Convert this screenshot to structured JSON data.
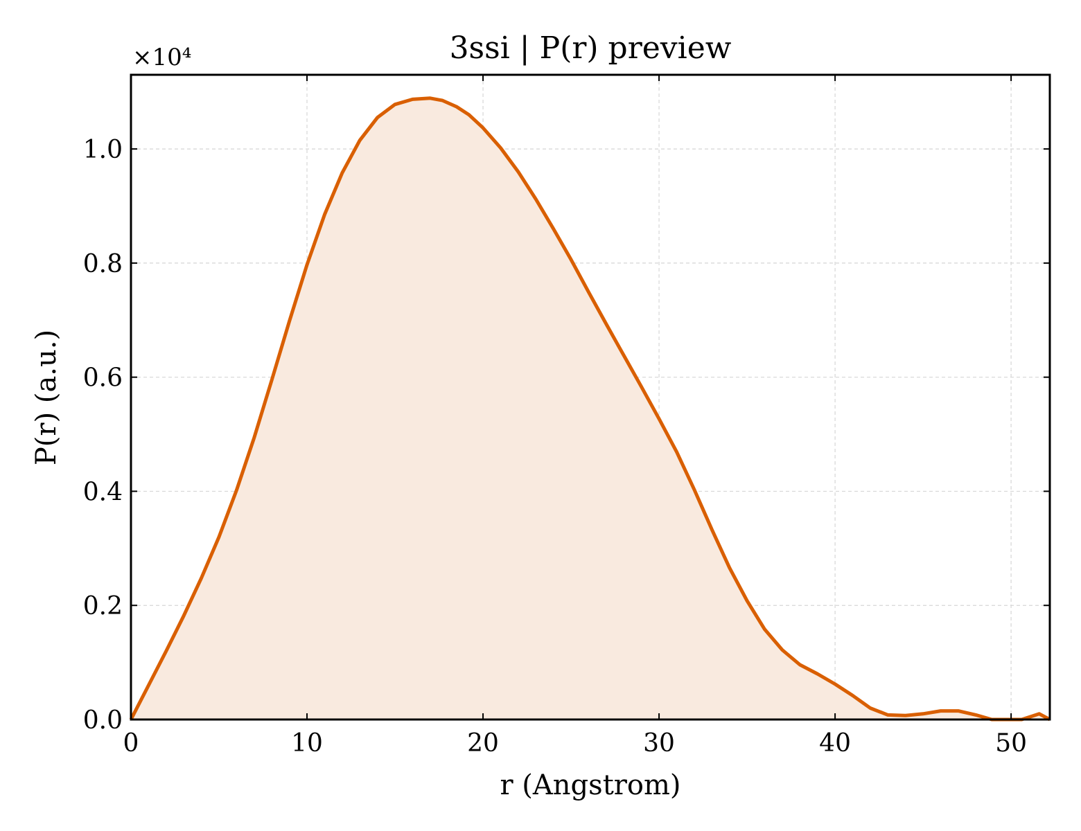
{
  "chart_data": {
    "type": "area",
    "title": "3ssi | P(r) preview",
    "xlabel": "r (Angstrom)",
    "ylabel": "P(r) (a.u.)",
    "y_offset_text": "×10⁴",
    "y_scale": 10000,
    "xlim": [
      0,
      52.2
    ],
    "ylim": [
      0,
      11300
    ],
    "xticks": [
      0,
      10,
      20,
      30,
      40,
      50
    ],
    "xtick_labels": [
      "0",
      "10",
      "20",
      "30",
      "40",
      "50"
    ],
    "yticks": [
      0,
      2000,
      4000,
      6000,
      8000,
      10000
    ],
    "ytick_labels": [
      "0.0",
      "0.2",
      "0.4",
      "0.6",
      "0.8",
      "1.0"
    ],
    "grid": true,
    "line_color": "#d95f02",
    "fill_color": "#f9eadf",
    "series": [
      {
        "x": [
          0,
          1,
          2,
          3,
          4,
          5,
          6,
          7,
          8,
          9,
          10,
          11,
          12,
          13,
          14,
          15,
          16,
          17,
          17.7,
          18.5,
          19.2,
          20,
          21,
          22,
          23,
          24,
          25,
          26,
          27,
          28,
          29,
          30,
          31,
          32,
          33,
          34,
          35,
          36,
          37,
          38,
          39,
          40,
          41,
          42,
          43,
          44,
          45,
          46,
          47,
          48,
          48.9,
          49.5,
          50,
          50.6,
          51.2,
          51.6,
          52.2
        ],
        "y": [
          0,
          600,
          1200,
          1820,
          2480,
          3200,
          4020,
          4940,
          5950,
          6980,
          7970,
          8850,
          9580,
          10150,
          10550,
          10780,
          10870,
          10890,
          10850,
          10740,
          10600,
          10370,
          10020,
          9600,
          9120,
          8600,
          8060,
          7490,
          6930,
          6380,
          5830,
          5270,
          4690,
          4030,
          3330,
          2660,
          2080,
          1580,
          1220,
          960,
          800,
          620,
          420,
          200,
          80,
          70,
          100,
          150,
          150,
          80,
          0,
          -60,
          -40,
          0,
          60,
          100,
          0
        ]
      }
    ]
  }
}
